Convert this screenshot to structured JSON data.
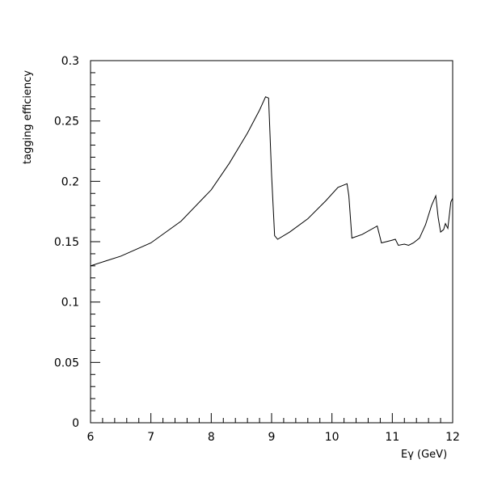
{
  "chart_data": {
    "type": "line",
    "title": "",
    "xlabel": "Eγ (GeV)",
    "ylabel": "tagging efficiency",
    "xlim": [
      6,
      12
    ],
    "ylim": [
      0,
      0.3
    ],
    "grid": false,
    "x_major_ticks": [
      "6",
      "7",
      "8",
      "9",
      "10",
      "11",
      "12"
    ],
    "y_major_ticks": [
      "0",
      "0.05",
      "0.1",
      "0.15",
      "0.2",
      "0.25",
      "0.3"
    ],
    "line_color": "#000000",
    "series": [
      {
        "x": [
          6.0,
          6.5,
          7.0,
          7.5,
          8.0,
          8.3,
          8.6,
          8.8,
          8.9,
          8.95,
          9.0,
          9.05,
          9.1,
          9.3,
          9.6,
          9.9,
          10.1,
          10.25,
          10.28,
          10.33,
          10.5,
          10.75,
          10.78,
          10.82,
          10.98,
          11.05,
          11.1,
          11.2,
          11.27,
          11.35,
          11.45,
          11.55,
          11.65,
          11.72,
          11.76,
          11.8,
          11.85,
          11.88,
          11.92,
          11.97,
          12.0
        ],
        "y": [
          0.13,
          0.138,
          0.149,
          0.167,
          0.193,
          0.215,
          0.24,
          0.259,
          0.27,
          0.269,
          0.205,
          0.155,
          0.152,
          0.158,
          0.169,
          0.184,
          0.195,
          0.198,
          0.188,
          0.153,
          0.156,
          0.163,
          0.157,
          0.149,
          0.151,
          0.152,
          0.147,
          0.148,
          0.147,
          0.149,
          0.153,
          0.164,
          0.18,
          0.188,
          0.17,
          0.158,
          0.16,
          0.165,
          0.161,
          0.183,
          0.186
        ]
      }
    ]
  }
}
